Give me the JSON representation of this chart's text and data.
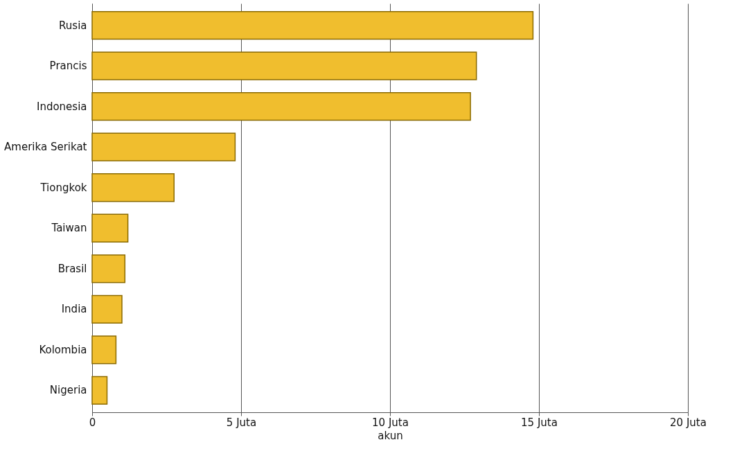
{
  "chart_data": {
    "type": "bar",
    "orientation": "horizontal",
    "xlabel": "akun",
    "categories": [
      "Rusia",
      "Prancis",
      "Indonesia",
      "Amerika Serikat",
      "Tiongkok",
      "Taiwan",
      "Brasil",
      "India",
      "Kolombia",
      "Nigeria"
    ],
    "values": [
      14.8,
      12.9,
      12.7,
      4.8,
      2.75,
      1.2,
      1.1,
      1.0,
      0.8,
      0.5
    ],
    "color": "#f0be2e",
    "xlim": [
      0,
      20
    ],
    "xticks": [
      0,
      {
        "value": 5,
        "label": "5 Juta"
      },
      {
        "value": 10,
        "label": "10 Juta"
      },
      {
        "value": 15,
        "label": "15 Juta"
      },
      {
        "value": 20,
        "label": "20 Juta"
      }
    ],
    "grid": "x"
  }
}
